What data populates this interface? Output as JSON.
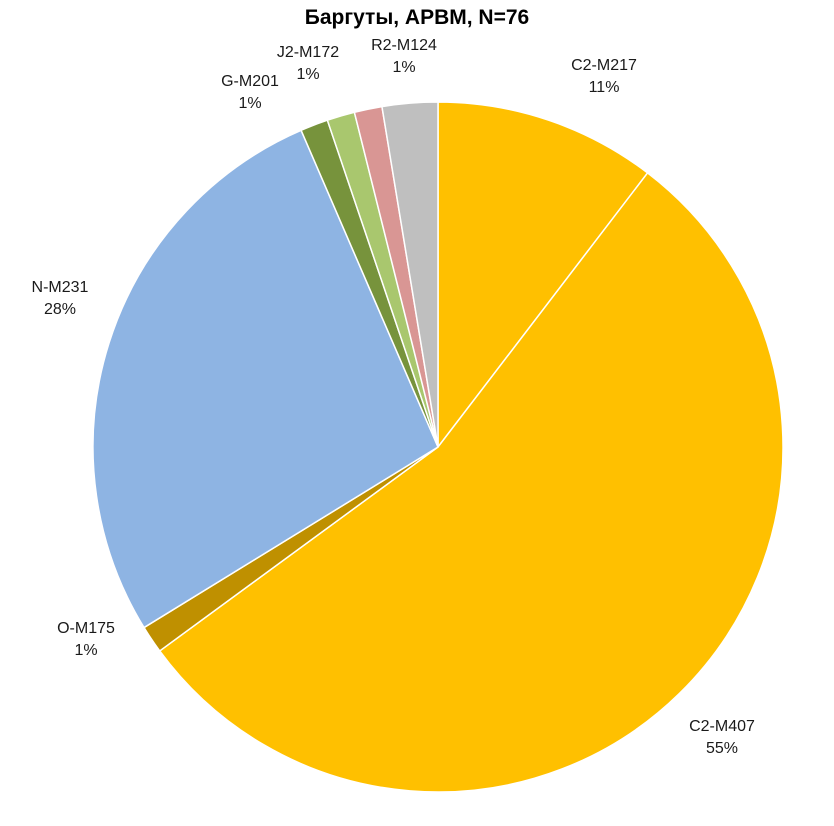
{
  "chart_data": {
    "type": "pie",
    "title": "Баргуты, АРВМ, N=76",
    "slices": [
      {
        "label": "C2-M217",
        "pct_label": "11%",
        "value": 8,
        "color": "#FFC000"
      },
      {
        "label": "C2-M407",
        "pct_label": "55%",
        "value": 42,
        "color": "#FFC000"
      },
      {
        "label": "O-M175",
        "pct_label": "1%",
        "value": 1,
        "color": "#BF9000"
      },
      {
        "label": "N-M231",
        "pct_label": "28%",
        "value": 21,
        "color": "#8EB4E3"
      },
      {
        "label": "G-M201",
        "pct_label": "1%",
        "value": 1,
        "color": "#77933C"
      },
      {
        "label": "J2-M172",
        "pct_label": "1%",
        "value": 1,
        "color": "#A9C76E"
      },
      {
        "label": "R2-M124",
        "pct_label": "1%",
        "value": 1,
        "color": "#D99694"
      },
      {
        "label": "",
        "pct_label": "",
        "value": 2,
        "color": "#BFBFBF"
      }
    ],
    "start": "12 o'clock",
    "direction": "clockwise",
    "legend": "none"
  }
}
